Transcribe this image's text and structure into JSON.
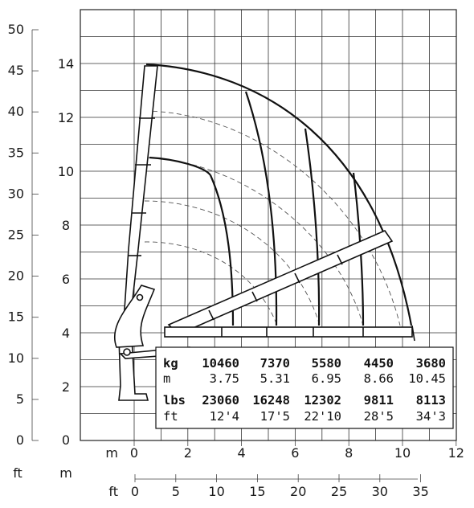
{
  "axes": {
    "y_m_ticks": [
      "2",
      "4",
      "6",
      "8",
      "10",
      "12",
      "14"
    ],
    "y_ft_ticks": [
      "0",
      "5",
      "10",
      "15",
      "20",
      "25",
      "30",
      "35",
      "40",
      "45",
      "50"
    ],
    "y_m_zero": "0",
    "x_m_ticks": [
      "0",
      "2",
      "4",
      "6",
      "8",
      "10",
      "12"
    ],
    "x_ft_ticks": [
      "0",
      "5",
      "10",
      "15",
      "20",
      "25",
      "30",
      "35"
    ],
    "unit_m_bottom": "m",
    "unit_ft_bottom": "ft",
    "unit_ft_left": "ft",
    "unit_m_left": "m"
  },
  "table": {
    "row_kg": {
      "label": "kg",
      "values": [
        "10460",
        "7370",
        "5580",
        "4450",
        "3680"
      ]
    },
    "row_m": {
      "label": "m",
      "values": [
        "3.75",
        "5.31",
        "6.95",
        "8.66",
        "10.45"
      ]
    },
    "row_lbs": {
      "label": "lbs",
      "values": [
        "23060",
        "16248",
        "12302",
        "9811",
        "8113"
      ]
    },
    "row_ft": {
      "label": "ft",
      "values": [
        "12'4",
        "17'5",
        "22'10",
        "28'5",
        "34'3"
      ]
    }
  },
  "chart_data": {
    "type": "load-chart",
    "x_unit": "m",
    "y_unit": "m",
    "xlim": [
      0,
      12
    ],
    "ylim": [
      0,
      16
    ],
    "outreach_m": [
      3.75,
      5.31,
      6.95,
      8.66,
      10.45
    ],
    "capacity_kg": [
      10460,
      7370,
      5580,
      4450,
      3680
    ],
    "capacity_lbs": [
      23060,
      16248,
      12302,
      9811,
      8113
    ],
    "outreach_ft": [
      "12'4",
      "17'5",
      "22'10",
      "28'5",
      "34'3"
    ]
  }
}
